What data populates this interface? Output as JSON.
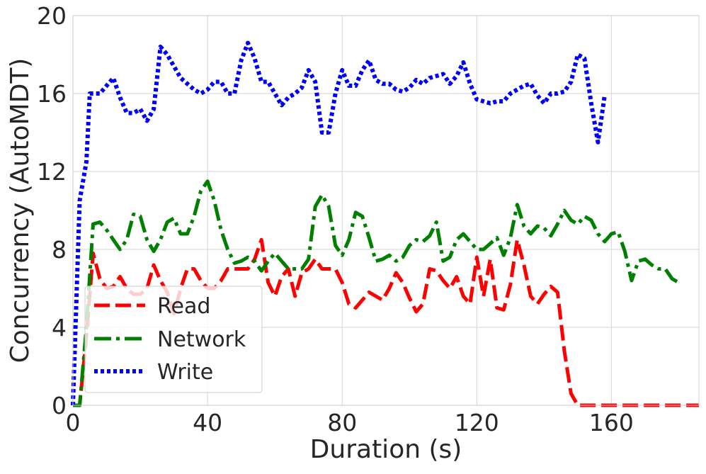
{
  "chart_data": {
    "type": "line",
    "title": "",
    "xlabel": "Duration (s)",
    "ylabel": "Concurrency (AutoMDT)",
    "xlim": [
      0,
      186
    ],
    "ylim": [
      0,
      20
    ],
    "xticks": [
      0,
      40,
      80,
      120,
      160
    ],
    "yticks": [
      0,
      4,
      8,
      12,
      16,
      20
    ],
    "grid": true,
    "legend_position": "lower-left",
    "series": [
      {
        "name": "Read",
        "color": "#ff0000",
        "style": "dashed",
        "points": [
          [
            0,
            0
          ],
          [
            2,
            0
          ],
          [
            4,
            3.5
          ],
          [
            6,
            7.8
          ],
          [
            8,
            6.5
          ],
          [
            10,
            6
          ],
          [
            12,
            6.1
          ],
          [
            14,
            6.6
          ],
          [
            16,
            6
          ],
          [
            18,
            5.7
          ],
          [
            20,
            5.7
          ],
          [
            22,
            6
          ],
          [
            24,
            7.2
          ],
          [
            26,
            6.4
          ],
          [
            28,
            5.8
          ],
          [
            30,
            4.7
          ],
          [
            32,
            6
          ],
          [
            34,
            7
          ],
          [
            36,
            7
          ],
          [
            38,
            6.4
          ],
          [
            40,
            6
          ],
          [
            42,
            6
          ],
          [
            44,
            6.4
          ],
          [
            46,
            7
          ],
          [
            48,
            7
          ],
          [
            50,
            7
          ],
          [
            52,
            7
          ],
          [
            54,
            7.5
          ],
          [
            56,
            8.5
          ],
          [
            58,
            6.3
          ],
          [
            60,
            5.6
          ],
          [
            62,
            6.6
          ],
          [
            64,
            7
          ],
          [
            66,
            5.6
          ],
          [
            68,
            6.8
          ],
          [
            70,
            7
          ],
          [
            72,
            7.5
          ],
          [
            74,
            7
          ],
          [
            76,
            7
          ],
          [
            78,
            7
          ],
          [
            80,
            6.3
          ],
          [
            82,
            5.2
          ],
          [
            84,
            5
          ],
          [
            86,
            5.4
          ],
          [
            88,
            5.8
          ],
          [
            90,
            5.6
          ],
          [
            92,
            5.4
          ],
          [
            94,
            6
          ],
          [
            96,
            6.8
          ],
          [
            98,
            6.3
          ],
          [
            100,
            5.5
          ],
          [
            102,
            4.8
          ],
          [
            104,
            5.2
          ],
          [
            106,
            7
          ],
          [
            108,
            6.9
          ],
          [
            110,
            6.4
          ],
          [
            112,
            6
          ],
          [
            114,
            6.6
          ],
          [
            116,
            5.6
          ],
          [
            118,
            5.2
          ],
          [
            120,
            7.6
          ],
          [
            122,
            5.6
          ],
          [
            124,
            7.5
          ],
          [
            126,
            5
          ],
          [
            128,
            4.9
          ],
          [
            130,
            6.2
          ],
          [
            132,
            8.5
          ],
          [
            134,
            7.2
          ],
          [
            136,
            5.6
          ],
          [
            138,
            5.2
          ],
          [
            140,
            5.7
          ],
          [
            142,
            6.1
          ],
          [
            144,
            5.8
          ],
          [
            146,
            2.8
          ],
          [
            148,
            0.6
          ],
          [
            150,
            0
          ],
          [
            186,
            0
          ]
        ]
      },
      {
        "name": "Network",
        "color": "#008000",
        "style": "dash-dot",
        "points": [
          [
            0,
            0
          ],
          [
            2,
            0
          ],
          [
            4,
            4
          ],
          [
            6,
            9.3
          ],
          [
            8,
            9.4
          ],
          [
            10,
            9
          ],
          [
            12,
            8.5
          ],
          [
            14,
            8
          ],
          [
            16,
            8.5
          ],
          [
            18,
            9.8
          ],
          [
            20,
            9.7
          ],
          [
            22,
            8.5
          ],
          [
            24,
            7.9
          ],
          [
            26,
            8.5
          ],
          [
            28,
            9.4
          ],
          [
            30,
            9.6
          ],
          [
            32,
            8.8
          ],
          [
            34,
            8.8
          ],
          [
            36,
            9.7
          ],
          [
            38,
            11
          ],
          [
            40,
            11.5
          ],
          [
            42,
            10.5
          ],
          [
            44,
            9
          ],
          [
            46,
            8
          ],
          [
            48,
            7.3
          ],
          [
            50,
            7.4
          ],
          [
            52,
            7.6
          ],
          [
            54,
            7.4
          ],
          [
            56,
            6.9
          ],
          [
            58,
            7.4
          ],
          [
            60,
            7.8
          ],
          [
            62,
            7.4
          ],
          [
            64,
            7
          ],
          [
            66,
            7
          ],
          [
            68,
            7
          ],
          [
            70,
            7.5
          ],
          [
            72,
            10.2
          ],
          [
            74,
            10.8
          ],
          [
            76,
            10.2
          ],
          [
            78,
            8.2
          ],
          [
            80,
            7.7
          ],
          [
            82,
            8.5
          ],
          [
            84,
            9.9
          ],
          [
            86,
            9.7
          ],
          [
            88,
            8.6
          ],
          [
            90,
            7.4
          ],
          [
            92,
            7.5
          ],
          [
            94,
            7.7
          ],
          [
            96,
            7.4
          ],
          [
            98,
            7.6
          ],
          [
            100,
            8.2
          ],
          [
            102,
            8.5
          ],
          [
            104,
            8.4
          ],
          [
            106,
            8.7
          ],
          [
            108,
            9.4
          ],
          [
            110,
            7.4
          ],
          [
            112,
            7.6
          ],
          [
            114,
            8.5
          ],
          [
            116,
            8.8
          ],
          [
            118,
            8.4
          ],
          [
            120,
            8
          ],
          [
            122,
            8
          ],
          [
            124,
            8.3
          ],
          [
            126,
            8.6
          ],
          [
            128,
            7.7
          ],
          [
            130,
            8.6
          ],
          [
            132,
            10.3
          ],
          [
            134,
            9.2
          ],
          [
            136,
            8.8
          ],
          [
            138,
            9.2
          ],
          [
            140,
            9.1
          ],
          [
            142,
            8.7
          ],
          [
            144,
            9.3
          ],
          [
            146,
            10
          ],
          [
            148,
            9.5
          ],
          [
            150,
            9.3
          ],
          [
            152,
            9.7
          ],
          [
            154,
            9.5
          ],
          [
            156,
            8.8
          ],
          [
            158,
            8.4
          ],
          [
            160,
            8.8
          ],
          [
            162,
            8.9
          ],
          [
            164,
            7.9
          ],
          [
            166,
            6.4
          ],
          [
            168,
            7.4
          ],
          [
            170,
            7.5
          ],
          [
            172,
            7.2
          ],
          [
            174,
            7
          ],
          [
            176,
            7
          ],
          [
            178,
            6.5
          ],
          [
            180,
            6.3
          ]
        ]
      },
      {
        "name": "Write",
        "color": "#0000ff",
        "style": "dotted",
        "points": [
          [
            0,
            0
          ],
          [
            2,
            10.5
          ],
          [
            4,
            12.5
          ],
          [
            5,
            16
          ],
          [
            8,
            16
          ],
          [
            10,
            16.4
          ],
          [
            12,
            16.8
          ],
          [
            14,
            15.8
          ],
          [
            16,
            15
          ],
          [
            18,
            15
          ],
          [
            20,
            15.2
          ],
          [
            22,
            14.6
          ],
          [
            24,
            15.2
          ],
          [
            26,
            18.4
          ],
          [
            28,
            18
          ],
          [
            30,
            17.4
          ],
          [
            32,
            16.8
          ],
          [
            34,
            16.5
          ],
          [
            36,
            16.2
          ],
          [
            38,
            16
          ],
          [
            40,
            16.2
          ],
          [
            42,
            16.6
          ],
          [
            44,
            16.6
          ],
          [
            46,
            16
          ],
          [
            48,
            16
          ],
          [
            50,
            17.7
          ],
          [
            52,
            18.6
          ],
          [
            54,
            17.8
          ],
          [
            56,
            16.6
          ],
          [
            58,
            16.6
          ],
          [
            60,
            16
          ],
          [
            62,
            15.4
          ],
          [
            64,
            15.8
          ],
          [
            66,
            16
          ],
          [
            68,
            16.3
          ],
          [
            70,
            17.2
          ],
          [
            72,
            16.6
          ],
          [
            74,
            14
          ],
          [
            76,
            14
          ],
          [
            78,
            16
          ],
          [
            80,
            17.2
          ],
          [
            82,
            16.4
          ],
          [
            84,
            16.4
          ],
          [
            86,
            17.2
          ],
          [
            88,
            17.7
          ],
          [
            90,
            16.7
          ],
          [
            92,
            16.5
          ],
          [
            94,
            16.5
          ],
          [
            96,
            16.2
          ],
          [
            98,
            16.1
          ],
          [
            100,
            16.3
          ],
          [
            102,
            16.7
          ],
          [
            104,
            16.5
          ],
          [
            106,
            16.8
          ],
          [
            108,
            16.9
          ],
          [
            110,
            17
          ],
          [
            112,
            16.5
          ],
          [
            114,
            16.9
          ],
          [
            116,
            17.6
          ],
          [
            118,
            16.5
          ],
          [
            120,
            15.7
          ],
          [
            122,
            15.6
          ],
          [
            124,
            15.5
          ],
          [
            126,
            15.6
          ],
          [
            128,
            15.6
          ],
          [
            130,
            16
          ],
          [
            132,
            16.2
          ],
          [
            134,
            16.4
          ],
          [
            136,
            16.5
          ],
          [
            138,
            15.9
          ],
          [
            140,
            15.5
          ],
          [
            142,
            16
          ],
          [
            144,
            16
          ],
          [
            146,
            16.1
          ],
          [
            148,
            16.6
          ],
          [
            150,
            18
          ],
          [
            152,
            17.8
          ],
          [
            154,
            15.5
          ],
          [
            156,
            13.5
          ],
          [
            158,
            15.9
          ]
        ]
      }
    ]
  }
}
